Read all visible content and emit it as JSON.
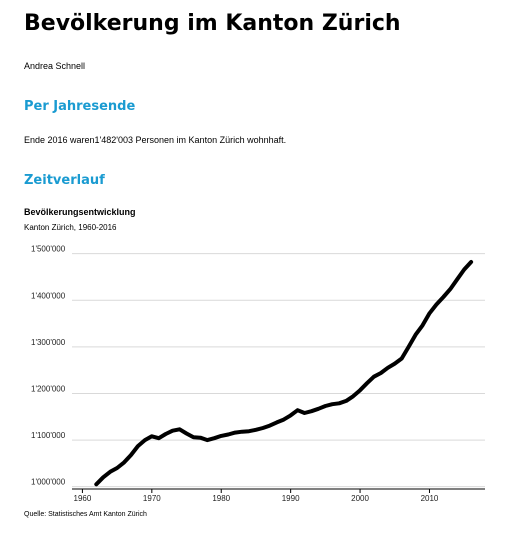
{
  "page": {
    "title": "Bevölkerung im Kanton Zürich",
    "author": "Andrea Schnell"
  },
  "sections": [
    {
      "heading": "Per Jahresende",
      "text": "Ende 2016 waren1'482'003 Personen im Kanton Zürich wohnhaft."
    },
    {
      "heading": "Zeitverlauf"
    }
  ],
  "colors": {
    "heading": "#1a9bd1",
    "line": "#000000",
    "grid": "#d9d9d9"
  },
  "chart_data": {
    "type": "line",
    "title": "Bevölkerungsentwicklung",
    "subtitle": "Kanton Zürich, 1960-2016",
    "source": "Quelle: Statistisches Amt Kanton Zürich",
    "xlabel": "",
    "ylabel": "",
    "xlim": [
      1958.5,
      2018
    ],
    "ylim": [
      995000,
      1510000
    ],
    "grid": true,
    "x_ticks": [
      1960,
      1970,
      1980,
      1990,
      2000,
      2010
    ],
    "x_tick_labels": [
      "1960",
      "1970",
      "1980",
      "1990",
      "2000",
      "2010"
    ],
    "y_ticks": [
      1000000,
      1100000,
      1200000,
      1300000,
      1400000,
      1500000
    ],
    "y_tick_labels": [
      "1'000'000",
      "1'100'000",
      "1'200'000",
      "1'300'000",
      "1'400'000",
      "1'500'000"
    ],
    "series": [
      {
        "x": [
          1962,
          1963,
          1964,
          1965,
          1966,
          1967,
          1968,
          1969,
          1970,
          1971,
          1972,
          1973,
          1974,
          1975,
          1976,
          1977,
          1978,
          1979,
          1980,
          1981,
          1982,
          1983,
          1984,
          1985,
          1986,
          1987,
          1988,
          1989,
          1990,
          1991,
          1992,
          1993,
          1994,
          1995,
          1996,
          1997,
          1998,
          1999,
          2000,
          2001,
          2002,
          2003,
          2004,
          2005,
          2006,
          2007,
          2008,
          2009,
          2010,
          2011,
          2012,
          2013,
          2014,
          2015,
          2016
        ],
        "values": [
          1005000,
          1020000,
          1032000,
          1040000,
          1052000,
          1068000,
          1087000,
          1100000,
          1108000,
          1104000,
          1113000,
          1120000,
          1123000,
          1114000,
          1106000,
          1105000,
          1100000,
          1104000,
          1109000,
          1112000,
          1116000,
          1118000,
          1119000,
          1122000,
          1126000,
          1131000,
          1138000,
          1144000,
          1153000,
          1164000,
          1158000,
          1162000,
          1167000,
          1173000,
          1177000,
          1179000,
          1184000,
          1194000,
          1207000,
          1222000,
          1236000,
          1244000,
          1255000,
          1264000,
          1275000,
          1300000,
          1326000,
          1346000,
          1372000,
          1391000,
          1407000,
          1424000,
          1445000,
          1466000,
          1482003
        ]
      }
    ]
  }
}
